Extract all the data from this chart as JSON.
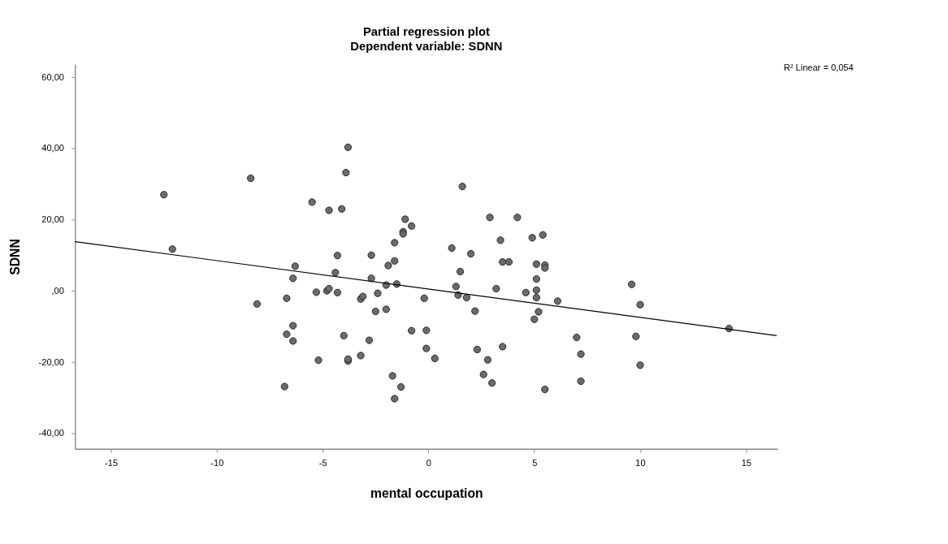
{
  "chart_data": {
    "type": "scatter",
    "title": "Partial regression plot",
    "subtitle": "Dependent variable: SDNN",
    "xlabel": "mental occupation",
    "ylabel": "SDNN",
    "xlim": [
      -16.7,
      16.5
    ],
    "xticks": [
      -15,
      -10,
      -5,
      0,
      5,
      10,
      15
    ],
    "ylim": [
      -44.5,
      63.5
    ],
    "yticks": [
      {
        "value": -40,
        "label": "-40,00"
      },
      {
        "value": -20,
        "label": "-20,00"
      },
      {
        "value": 0,
        "label": ",00"
      },
      {
        "value": 20,
        "label": "20,00"
      },
      {
        "value": 40,
        "label": "40,00"
      },
      {
        "value": 60,
        "label": "60,00"
      }
    ],
    "grid": false,
    "line_style": "solid",
    "annotations": [
      "R² Linear = 0,054"
    ],
    "series": [
      {
        "type": "scatter",
        "color": "#6b6b6b",
        "marker": "circle",
        "x": [
          -12.5,
          -8.4,
          -5.5,
          -12.1,
          -6.3,
          -6.4,
          -5.3,
          -8.1,
          -6.7,
          -6.4,
          -6.7,
          -6.4,
          -5.2,
          -6.8,
          -3.8,
          -3.9,
          -4.7,
          -4.1,
          1.6,
          -1.1,
          -0.8,
          -1.2,
          -1.2,
          -1.6,
          2.9,
          4.2,
          3.4,
          4.9,
          5.4,
          1.1,
          2.0,
          -4.3,
          -2.7,
          -1.6,
          -1.9,
          -4.4,
          -2.7,
          -2.0,
          -1.5,
          3.5,
          3.8,
          1.5,
          5.1,
          5.5,
          5.5,
          5.1,
          1.3,
          3.2,
          5.1,
          4.6,
          5.1,
          1.4,
          1.8,
          6.1,
          -4.8,
          -4.7,
          -4.3,
          -3.2,
          -3.1,
          -2.4,
          -0.2,
          -2.5,
          -2.0,
          2.2,
          5.2,
          5.0,
          -4.0,
          -2.8,
          -0.8,
          -0.1,
          -0.1,
          0.3,
          2.3,
          3.5,
          2.8,
          2.6,
          3.0,
          -3.8,
          -3.8,
          -3.2,
          -1.7,
          -1.3,
          -1.6,
          5.5,
          9.6,
          10.0,
          7.0,
          7.2,
          7.2,
          9.8,
          10.0,
          14.2
        ],
        "values": [
          26.9,
          31.5,
          24.8,
          11.6,
          6.8,
          3.4,
          -0.5,
          -3.8,
          -2.2,
          -9.9,
          -12.3,
          -14.2,
          -19.6,
          -27.0,
          40.2,
          33.1,
          22.5,
          22.9,
          29.2,
          20.0,
          18.1,
          16.5,
          15.9,
          13.4,
          20.5,
          20.5,
          14.1,
          14.8,
          15.6,
          11.9,
          10.3,
          9.8,
          9.9,
          8.3,
          7.0,
          5.0,
          3.4,
          1.5,
          1.8,
          8.0,
          8.0,
          5.3,
          7.4,
          7.1,
          6.3,
          3.2,
          1.1,
          0.5,
          0.1,
          -0.6,
          -2.0,
          -1.3,
          -2.0,
          -3.0,
          -0.1,
          0.5,
          -0.6,
          -2.4,
          -1.7,
          -0.8,
          -2.2,
          -5.9,
          -5.3,
          -5.8,
          -6.0,
          -8.1,
          -12.7,
          -14.0,
          -11.3,
          -11.2,
          -16.3,
          -19.1,
          -16.6,
          -15.8,
          -19.5,
          -23.6,
          -26.0,
          -19.8,
          -19.3,
          -18.3,
          -24.0,
          -27.1,
          -30.4,
          -27.8,
          1.7,
          -4.0,
          -13.2,
          -17.9,
          -25.5,
          -12.9,
          -21.0,
          -10.7
        ]
      },
      {
        "type": "line",
        "color": "#000000",
        "marker": "none",
        "x": [
          -16.7,
          16.45
        ],
        "values": [
          13.7,
          -12.7
        ]
      }
    ]
  }
}
